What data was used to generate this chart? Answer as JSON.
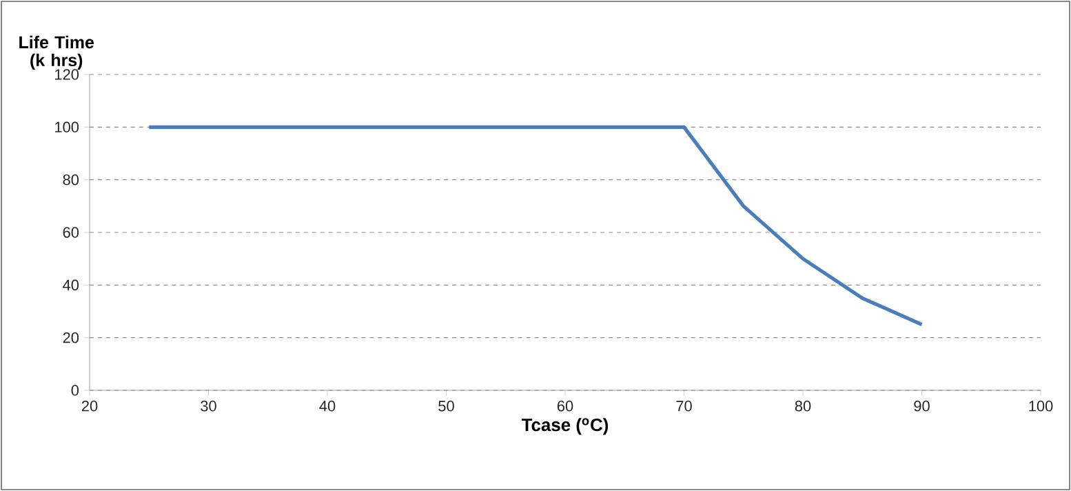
{
  "chart_data": {
    "type": "line",
    "xlabel": "Tcase ($^{o}$C)",
    "ylabel": "Life Time (k hrs)",
    "x": [
      25,
      70,
      75,
      80,
      85,
      90
    ],
    "series": [
      {
        "color": "#4a7ebb",
        "values": [
          100,
          100,
          70,
          50,
          35,
          25
        ]
      }
    ],
    "xlim": [
      20,
      100
    ],
    "xticks": [
      20,
      30,
      40,
      50,
      60,
      70,
      80,
      90,
      100
    ],
    "ylim": [
      0,
      120
    ],
    "yticks": [
      0,
      20,
      40,
      60,
      80,
      100,
      120
    ],
    "grid": "y"
  }
}
